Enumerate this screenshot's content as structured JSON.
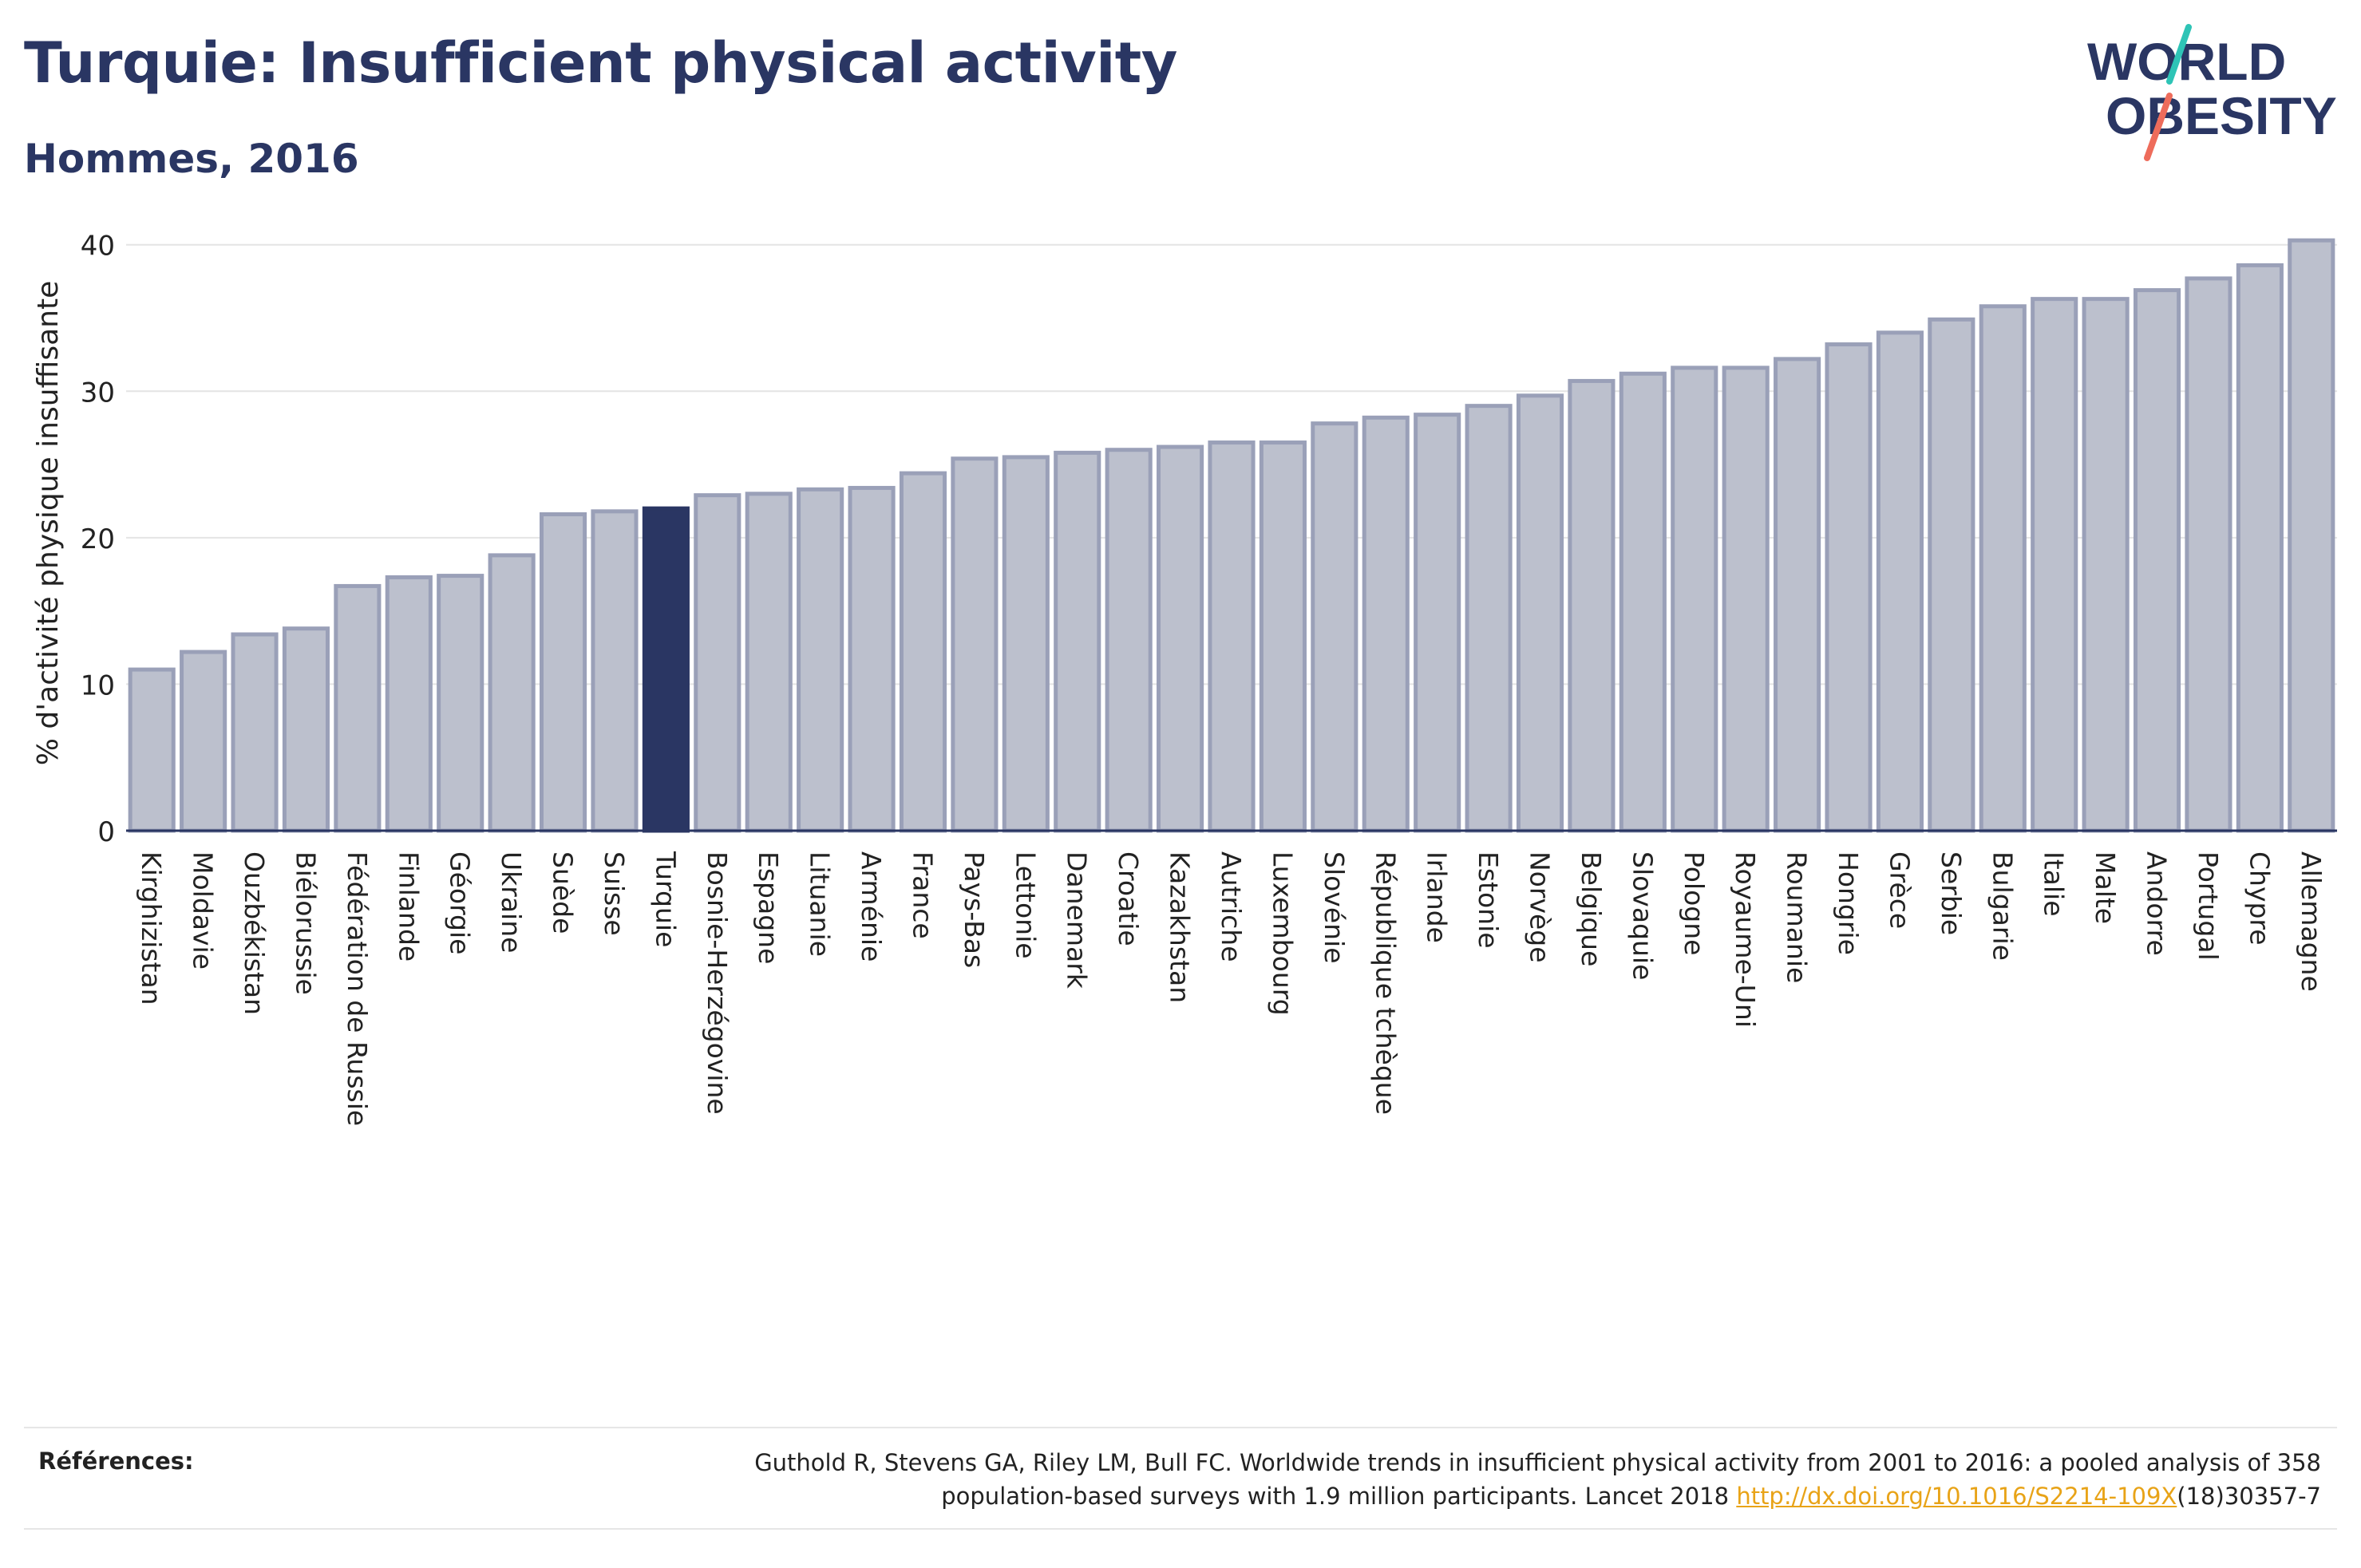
{
  "header": {
    "title": "Turquie: Insufficient physical activity",
    "subtitle": "Hommes, 2016"
  },
  "logo": {
    "line1": "WORLD",
    "line2": "OBESITY"
  },
  "chart_data": {
    "type": "bar",
    "ylabel": "% d'activité physique insuffisante",
    "ylim": [
      0,
      42
    ],
    "yticks": [
      0,
      10,
      20,
      30,
      40
    ],
    "grid": true,
    "highlight": "Turquie",
    "colors": {
      "bar": "#bcc0cd",
      "bar_edge": "#9aa0b8",
      "highlight": "#2a3663"
    },
    "categories": [
      "Kirghizistan",
      "Moldavie",
      "Ouzbékistan",
      "Biélorussie",
      "Fédération de Russie",
      "Finlande",
      "Géorgie",
      "Ukraine",
      "Suède",
      "Suisse",
      "Turquie",
      "Bosnie-Herzégovine",
      "Espagne",
      "Lituanie",
      "Arménie",
      "France",
      "Pays-Bas",
      "Lettonie",
      "Danemark",
      "Croatie",
      "Kazakhstan",
      "Autriche",
      "Luxembourg",
      "Slovénie",
      "République tchèque",
      "Irlande",
      "Estonie",
      "Norvège",
      "Belgique",
      "Slovaquie",
      "Pologne",
      "Royaume-Uni",
      "Roumanie",
      "Hongrie",
      "Grèce",
      "Serbie",
      "Bulgarie",
      "Italie",
      "Malte",
      "Andorre",
      "Portugal",
      "Chypre",
      "Allemagne"
    ],
    "values": [
      11.0,
      12.2,
      13.4,
      13.8,
      16.7,
      17.3,
      17.4,
      18.8,
      21.6,
      21.8,
      22.0,
      22.9,
      23.0,
      23.3,
      23.4,
      24.4,
      25.4,
      25.5,
      25.8,
      26.0,
      26.2,
      26.5,
      26.5,
      27.8,
      28.2,
      28.4,
      29.0,
      29.7,
      30.7,
      31.2,
      31.6,
      31.6,
      32.2,
      33.2,
      34.0,
      34.9,
      35.8,
      36.3,
      36.3,
      36.9,
      37.7,
      38.6,
      40.3
    ]
  },
  "references": {
    "label": "Références:",
    "text_line1": "Guthold R, Stevens GA, Riley LM, Bull FC. Worldwide trends in insufficient physical activity from 2001 to 2016: a pooled analysis of 358",
    "text_line2_pre": "population-based surveys with 1.9 million participants. Lancet 2018 ",
    "link": "http://dx.doi.org/10.1016/S2214-109X",
    "text_line2_post": "(18)30357-7"
  }
}
